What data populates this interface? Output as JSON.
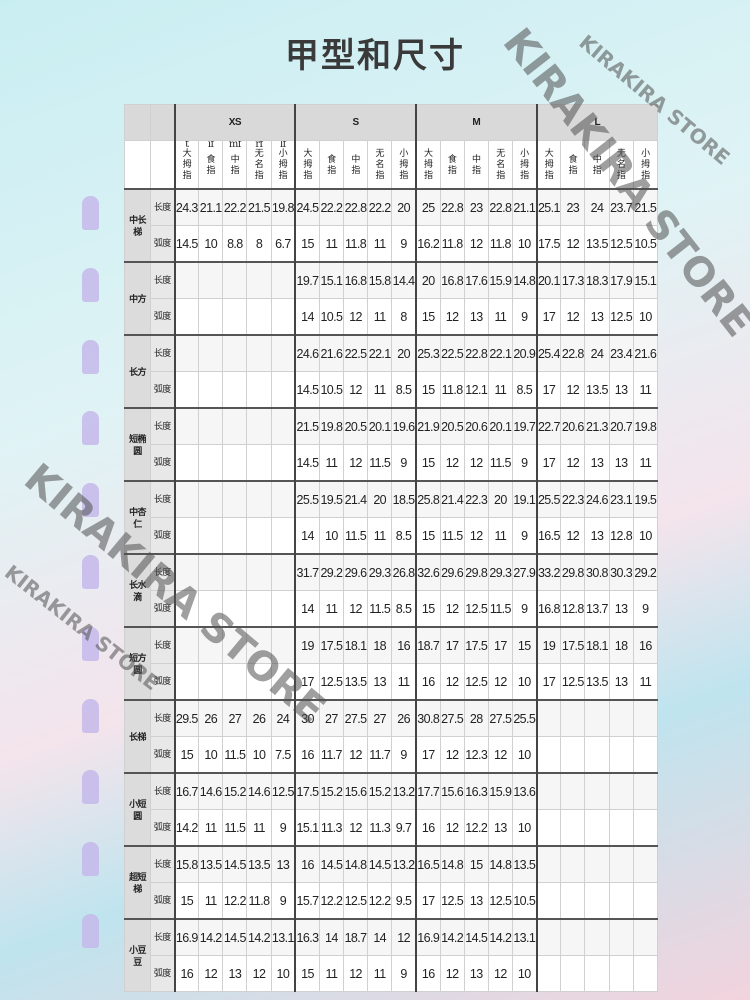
{
  "title": "甲型和尺寸",
  "watermark": "KIRAKIRA STORE",
  "sizes": [
    "XS",
    "S",
    "M",
    "L"
  ],
  "finger_annotations": [
    "t",
    "if",
    "mf",
    "rf",
    "lf"
  ],
  "fingers": [
    "大拇指",
    "食指",
    "中指",
    "无名指",
    "小拇指"
  ],
  "row_labels": {
    "length": "长度",
    "curve": "弧度"
  },
  "groups": [
    {
      "name": "中长梯",
      "length": [
        24.3,
        21.1,
        22.2,
        21.5,
        19.8,
        24.5,
        22.2,
        22.8,
        22.2,
        20,
        25,
        22.8,
        23,
        22.8,
        21.1,
        25.1,
        23,
        24,
        23.7,
        21.5
      ],
      "curve": [
        14.5,
        10,
        8.8,
        8,
        6.7,
        15,
        11,
        11.8,
        11,
        9,
        16.2,
        11.8,
        12,
        11.8,
        10,
        17.5,
        12,
        13.5,
        12.5,
        10.5
      ]
    },
    {
      "name": "中方",
      "length": [
        null,
        null,
        null,
        null,
        null,
        19.7,
        15.1,
        16.8,
        15.8,
        14.4,
        20,
        16.8,
        17.6,
        15.9,
        14.8,
        20.1,
        17.3,
        18.3,
        17.9,
        15.1
      ],
      "curve": [
        null,
        null,
        null,
        null,
        null,
        14,
        10.5,
        12,
        11,
        8,
        15,
        12,
        13,
        11,
        9,
        17,
        12,
        13,
        12.5,
        10
      ]
    },
    {
      "name": "长方",
      "length": [
        null,
        null,
        null,
        null,
        null,
        24.6,
        21.6,
        22.5,
        22.1,
        20,
        25.3,
        22.5,
        22.8,
        22.1,
        20.9,
        25.4,
        22.8,
        24,
        23.4,
        21.6
      ],
      "curve": [
        null,
        null,
        null,
        null,
        null,
        14.5,
        10.5,
        12,
        11,
        8.5,
        15,
        11.8,
        12.1,
        11,
        8.5,
        17,
        12,
        13.5,
        13,
        11
      ]
    },
    {
      "name": "短椭圆",
      "length": [
        null,
        null,
        null,
        null,
        null,
        21.5,
        19.8,
        20.5,
        20.1,
        19.6,
        21.9,
        20.5,
        20.6,
        20.1,
        19.7,
        22.7,
        20.6,
        21.3,
        20.7,
        19.8
      ],
      "curve": [
        null,
        null,
        null,
        null,
        null,
        14.5,
        11,
        12,
        11.5,
        9,
        15,
        12,
        12,
        11.5,
        9,
        17,
        12,
        13,
        13,
        11
      ]
    },
    {
      "name": "中杏仁",
      "length": [
        null,
        null,
        null,
        null,
        null,
        25.5,
        19.5,
        21.4,
        20,
        18.5,
        25.8,
        21.4,
        22.3,
        20,
        19.1,
        25.5,
        22.3,
        24.6,
        23.1,
        19.5
      ],
      "curve": [
        null,
        null,
        null,
        null,
        null,
        14,
        10,
        11.5,
        11,
        8.5,
        15,
        11.5,
        12,
        11,
        9,
        16.5,
        12,
        13,
        12.8,
        10
      ]
    },
    {
      "name": "长水滴",
      "length": [
        null,
        null,
        null,
        null,
        null,
        31.7,
        29.2,
        29.6,
        29.3,
        26.8,
        32.6,
        29.6,
        29.8,
        29.3,
        27.9,
        33.2,
        29.8,
        30.8,
        30.3,
        29.2
      ],
      "curve": [
        null,
        null,
        null,
        null,
        null,
        14,
        11,
        12,
        11.5,
        8.5,
        15,
        12,
        12.5,
        11.5,
        9,
        16.8,
        12.8,
        13.7,
        13,
        9
      ]
    },
    {
      "name": "短方圆",
      "length": [
        null,
        null,
        null,
        null,
        null,
        19,
        17.5,
        18.1,
        18,
        16,
        18.7,
        17,
        17.5,
        17,
        15,
        19,
        17.5,
        18.1,
        18,
        16
      ],
      "curve": [
        null,
        null,
        null,
        null,
        null,
        17,
        12.5,
        13.5,
        13,
        11,
        16,
        12,
        12.5,
        12,
        10,
        17,
        12.5,
        13.5,
        13,
        11
      ]
    },
    {
      "name": "长梯",
      "length": [
        29.5,
        26,
        27,
        26,
        24,
        30,
        27,
        27.5,
        27,
        26,
        30.8,
        27.5,
        28,
        27.5,
        25.5,
        null,
        null,
        null,
        null,
        null
      ],
      "curve": [
        15,
        10,
        11.5,
        10,
        7.5,
        16,
        11.7,
        12,
        11.7,
        9,
        17,
        12,
        12.3,
        12,
        10,
        null,
        null,
        null,
        null,
        null
      ]
    },
    {
      "name": "小短圆",
      "length": [
        16.7,
        14.6,
        15.2,
        14.6,
        12.5,
        17.5,
        15.2,
        15.6,
        15.2,
        13.2,
        17.7,
        15.6,
        16.3,
        15.9,
        13.6,
        null,
        null,
        null,
        null,
        null
      ],
      "curve": [
        14.2,
        11,
        11.5,
        11,
        9,
        15.1,
        11.3,
        12,
        11.3,
        9.7,
        16,
        12,
        12.2,
        13,
        10,
        null,
        null,
        null,
        null,
        null
      ]
    },
    {
      "name": "超短梯",
      "length": [
        15.8,
        13.5,
        14.5,
        13.5,
        13,
        16,
        14.5,
        14.8,
        14.5,
        13.2,
        16.5,
        14.8,
        15,
        14.8,
        13.5,
        null,
        null,
        null,
        null,
        null
      ],
      "curve": [
        15,
        11,
        12.2,
        11.8,
        9,
        15.7,
        12.2,
        12.5,
        12.2,
        9.5,
        17,
        12.5,
        13,
        12.5,
        10.5,
        null,
        null,
        null,
        null,
        null
      ]
    },
    {
      "name": "小豆豆",
      "length": [
        16.9,
        14.2,
        14.5,
        14.2,
        13.1,
        16.3,
        14,
        18.7,
        14,
        12,
        16.9,
        14.2,
        14.5,
        14.2,
        13.1,
        null,
        null,
        null,
        null,
        null
      ],
      "curve": [
        16,
        12,
        13,
        12,
        10,
        15,
        11,
        12,
        11,
        9,
        16,
        12,
        13,
        12,
        10,
        null,
        null,
        null,
        null,
        null
      ]
    }
  ],
  "colors": {
    "nail": "#c4b8ea",
    "header": "#d9d9d9",
    "grid": "#d0d0d0"
  }
}
